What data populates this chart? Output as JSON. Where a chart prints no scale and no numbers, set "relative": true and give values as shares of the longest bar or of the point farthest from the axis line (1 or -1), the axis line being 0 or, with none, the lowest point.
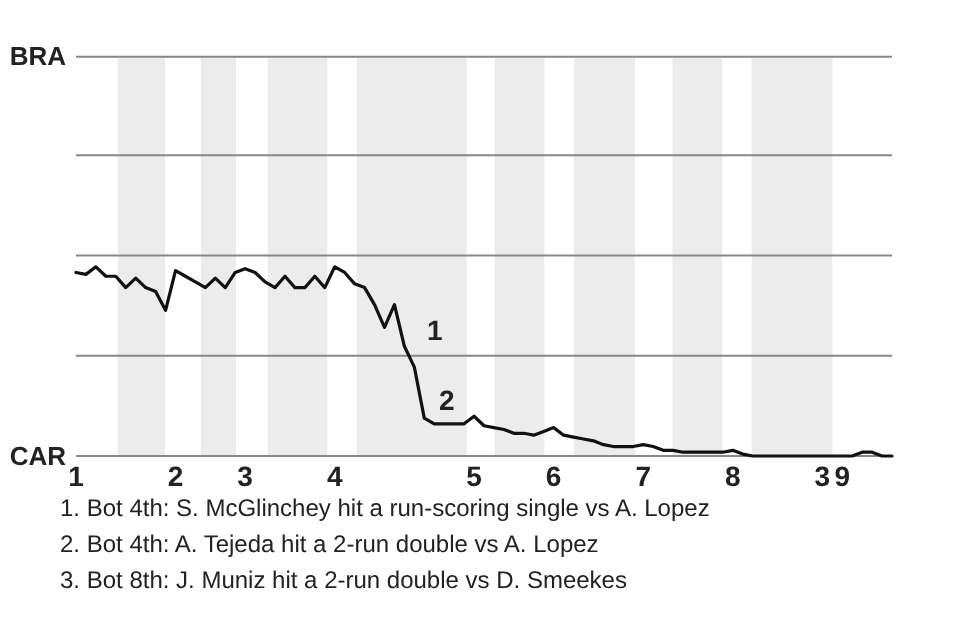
{
  "chart_data": {
    "type": "line",
    "relative": true,
    "categories": [
      "1",
      null,
      null,
      null,
      null,
      null,
      null,
      null,
      null,
      null,
      "2",
      null,
      null,
      null,
      null,
      null,
      null,
      "3",
      null,
      null,
      null,
      null,
      null,
      null,
      null,
      null,
      "4",
      null,
      null,
      null,
      null,
      null,
      null,
      null,
      null,
      null,
      null,
      null,
      null,
      null,
      "5",
      null,
      null,
      null,
      null,
      null,
      null,
      null,
      "6",
      null,
      null,
      null,
      null,
      null,
      null,
      null,
      null,
      "7",
      null,
      null,
      null,
      null,
      null,
      null,
      null,
      null,
      "8",
      null,
      null,
      null,
      null,
      null,
      null,
      null,
      null,
      "3",
      null,
      "9",
      null,
      null,
      null,
      null,
      null
    ],
    "series": [
      {
        "color": "#111111",
        "values": [
          0.97,
          0.96,
          1,
          0.95,
          0.95,
          0.89,
          0.94,
          0.89,
          0.87,
          0.77,
          0.98,
          0.95,
          0.92,
          0.89,
          0.94,
          0.89,
          0.97,
          0.99,
          0.97,
          0.92,
          0.89,
          0.95,
          0.89,
          0.89,
          0.95,
          0.89,
          1,
          0.97,
          0.91,
          0.89,
          0.8,
          0.68,
          0.8,
          0.58,
          0.47,
          0.2,
          0.17,
          0.17,
          0.17,
          0.17,
          0.21,
          0.16,
          0.15,
          0.14,
          0.12,
          0.12,
          0.11,
          0.13,
          0.15,
          0.11,
          0.1,
          0.09,
          0.08,
          0.06,
          0.05,
          0.05,
          0.05,
          0.06,
          0.05,
          0.03,
          0.03,
          0.02,
          0.02,
          0.02,
          0.02,
          0.02,
          0.03,
          0.01,
          0,
          0,
          0,
          0,
          0,
          0,
          0,
          0,
          0,
          0,
          0,
          0.02,
          0.02,
          0,
          0
        ]
      }
    ],
    "ref_lines": [
      {
        "axis": "y",
        "value": 0.53,
        "color": "#888888"
      },
      {
        "axis": "y",
        "value": 1.06,
        "color": "#888888"
      },
      {
        "axis": "y",
        "value": 1.59,
        "color": "#888888"
      },
      {
        "axis": "y",
        "value": 2.11,
        "color": "#888888"
      }
    ],
    "annotations": [
      "BRA",
      "CAR",
      "1",
      "2",
      "1. Bot 4th: S. McGlinchey hit a run-scoring single vs A. Lopez",
      "2. Bot 4th: A. Tejeda hit a 2-run double vs A. Lopez",
      "3. Bot 8th: J. Muniz hit a 2-run double vs D. Smeekes"
    ]
  }
}
